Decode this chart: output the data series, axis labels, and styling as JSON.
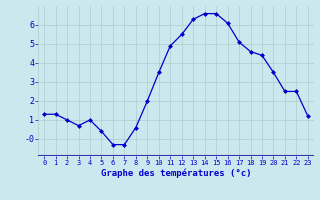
{
  "hours": [
    0,
    1,
    2,
    3,
    4,
    5,
    6,
    7,
    8,
    9,
    10,
    11,
    12,
    13,
    14,
    15,
    16,
    17,
    18,
    19,
    20,
    21,
    22,
    23
  ],
  "temps": [
    1.3,
    1.3,
    1.0,
    0.7,
    1.0,
    0.4,
    -0.3,
    -0.3,
    0.6,
    2.0,
    3.5,
    4.9,
    5.5,
    6.3,
    6.6,
    6.6,
    6.1,
    5.1,
    4.6,
    4.4,
    3.5,
    2.5,
    2.5,
    1.2
  ],
  "xlabel": "Graphe des températures (°c)",
  "line_color": "#0000cc",
  "bg_color": "#cce8ee",
  "grid_color": "#aacccc",
  "axis_color": "#0000cc",
  "tick_color": "#0000cc",
  "separator_color": "#3333aa",
  "ylim": [
    -0.9,
    7.0
  ],
  "xlim": [
    -0.5,
    23.5
  ],
  "yticks": [
    0,
    1,
    2,
    3,
    4,
    5,
    6
  ],
  "ytick_labels": [
    "-0",
    "1",
    "2",
    "3",
    "4",
    "5",
    "6"
  ]
}
